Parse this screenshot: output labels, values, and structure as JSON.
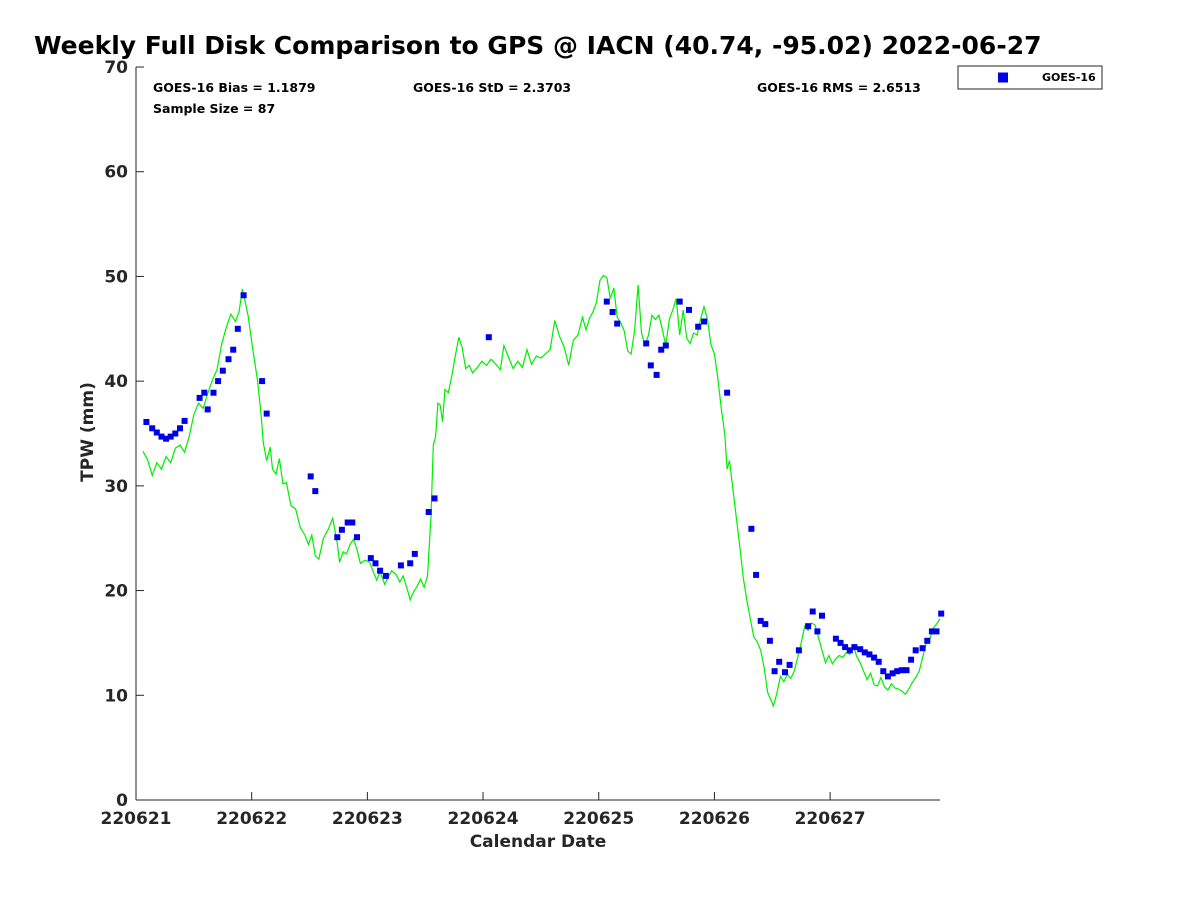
{
  "chart_data": {
    "type": "scatter",
    "title": "Weekly Full Disk Comparison to GPS @ IACN (40.74, -95.02) 2022-06-27",
    "xlabel": "Calendar Date",
    "ylabel": "TPW (mm)",
    "xlim": [
      0,
      6.95
    ],
    "ylim": [
      0,
      70
    ],
    "x_ticks": [
      0,
      1,
      2,
      3,
      4,
      5,
      6
    ],
    "x_tick_labels": [
      "220621",
      "220622",
      "220623",
      "220624",
      "220625",
      "220626",
      "220627"
    ],
    "y_ticks": [
      0,
      10,
      20,
      30,
      40,
      50,
      60,
      70
    ],
    "y_tick_labels": [
      "0",
      "10",
      "20",
      "30",
      "40",
      "50",
      "60",
      "70"
    ],
    "stats": {
      "bias": "GOES-16 Bias = 1.1879",
      "std": "GOES-16 StD = 2.3703",
      "rms": "GOES-16 RMS = 2.6513",
      "sample_size": "Sample Size = 87"
    },
    "legend": {
      "position": "top-right, outside plot",
      "label": "GOES-16",
      "marker_color": "#0000e6"
    },
    "series": [
      {
        "name": "GOES-16",
        "kind": "scatter",
        "color": "#0000e6",
        "points": [
          [
            0.09,
            36.1
          ],
          [
            0.14,
            35.5
          ],
          [
            0.18,
            35.1
          ],
          [
            0.22,
            34.7
          ],
          [
            0.26,
            34.5
          ],
          [
            0.3,
            34.7
          ],
          [
            0.34,
            35.0
          ],
          [
            0.38,
            35.5
          ],
          [
            0.42,
            36.2
          ],
          [
            0.55,
            38.4
          ],
          [
            0.59,
            38.9
          ],
          [
            0.62,
            37.3
          ],
          [
            0.67,
            38.9
          ],
          [
            0.71,
            40.0
          ],
          [
            0.75,
            41.0
          ],
          [
            0.8,
            42.1
          ],
          [
            0.84,
            43.0
          ],
          [
            0.88,
            45.0
          ],
          [
            0.93,
            48.2
          ],
          [
            1.09,
            40.0
          ],
          [
            1.13,
            36.9
          ],
          [
            1.51,
            30.9
          ],
          [
            1.55,
            29.5
          ],
          [
            1.74,
            25.1
          ],
          [
            1.78,
            25.8
          ],
          [
            1.83,
            26.5
          ],
          [
            1.87,
            26.5
          ],
          [
            1.91,
            25.1
          ],
          [
            2.03,
            23.1
          ],
          [
            2.07,
            22.6
          ],
          [
            2.11,
            21.9
          ],
          [
            2.16,
            21.4
          ],
          [
            2.29,
            22.4
          ],
          [
            2.37,
            22.6
          ],
          [
            2.41,
            23.5
          ],
          [
            2.53,
            27.5
          ],
          [
            2.58,
            28.8
          ],
          [
            3.05,
            44.2
          ],
          [
            4.07,
            47.6
          ],
          [
            4.12,
            46.6
          ],
          [
            4.16,
            45.5
          ],
          [
            4.41,
            43.6
          ],
          [
            4.45,
            41.5
          ],
          [
            4.5,
            40.6
          ],
          [
            4.54,
            43.0
          ],
          [
            4.58,
            43.4
          ],
          [
            4.7,
            47.6
          ],
          [
            4.78,
            46.8
          ],
          [
            4.86,
            45.2
          ],
          [
            4.91,
            45.7
          ],
          [
            5.11,
            38.9
          ],
          [
            5.32,
            25.9
          ],
          [
            5.36,
            21.5
          ],
          [
            5.4,
            17.1
          ],
          [
            5.44,
            16.8
          ],
          [
            5.48,
            15.2
          ],
          [
            5.52,
            12.3
          ],
          [
            5.56,
            13.2
          ],
          [
            5.61,
            12.2
          ],
          [
            5.65,
            12.9
          ],
          [
            5.73,
            14.3
          ],
          [
            5.81,
            16.6
          ],
          [
            5.85,
            18.0
          ],
          [
            5.89,
            16.1
          ],
          [
            5.93,
            17.6
          ],
          [
            6.05,
            15.4
          ],
          [
            6.09,
            15.0
          ],
          [
            6.13,
            14.6
          ],
          [
            6.17,
            14.3
          ],
          [
            6.21,
            14.6
          ],
          [
            6.26,
            14.4
          ],
          [
            6.3,
            14.1
          ],
          [
            6.34,
            13.9
          ],
          [
            6.38,
            13.6
          ],
          [
            6.42,
            13.2
          ],
          [
            6.46,
            12.3
          ],
          [
            6.5,
            11.8
          ],
          [
            6.54,
            12.1
          ],
          [
            6.58,
            12.3
          ],
          [
            6.62,
            12.4
          ],
          [
            6.66,
            12.4
          ],
          [
            6.7,
            13.4
          ],
          [
            6.74,
            14.3
          ],
          [
            6.8,
            14.5
          ],
          [
            6.84,
            15.2
          ],
          [
            6.88,
            16.1
          ],
          [
            6.92,
            16.1
          ],
          [
            6.96,
            17.8
          ]
        ]
      },
      {
        "name": "GPS",
        "kind": "line",
        "color": "#00ee00",
        "points": [
          [
            0.06,
            33.3
          ],
          [
            0.1,
            32.5
          ],
          [
            0.14,
            31.0
          ],
          [
            0.18,
            32.2
          ],
          [
            0.22,
            31.6
          ],
          [
            0.26,
            32.8
          ],
          [
            0.3,
            32.2
          ],
          [
            0.34,
            33.6
          ],
          [
            0.38,
            33.9
          ],
          [
            0.42,
            33.2
          ],
          [
            0.46,
            34.7
          ],
          [
            0.5,
            36.8
          ],
          [
            0.54,
            37.9
          ],
          [
            0.58,
            37.4
          ],
          [
            0.62,
            38.8
          ],
          [
            0.66,
            40.1
          ],
          [
            0.7,
            41.1
          ],
          [
            0.74,
            43.5
          ],
          [
            0.78,
            45.1
          ],
          [
            0.82,
            46.4
          ],
          [
            0.86,
            45.7
          ],
          [
            0.89,
            46.6
          ],
          [
            0.92,
            48.8
          ],
          [
            0.94,
            47.8
          ],
          [
            0.97,
            46.2
          ],
          [
            1.01,
            43.0
          ],
          [
            1.05,
            40.1
          ],
          [
            1.08,
            37.0
          ],
          [
            1.1,
            34.1
          ],
          [
            1.13,
            32.4
          ],
          [
            1.16,
            33.7
          ],
          [
            1.18,
            31.6
          ],
          [
            1.21,
            31.1
          ],
          [
            1.24,
            32.6
          ],
          [
            1.27,
            30.2
          ],
          [
            1.3,
            30.3
          ],
          [
            1.34,
            28.1
          ],
          [
            1.38,
            27.8
          ],
          [
            1.42,
            26.0
          ],
          [
            1.46,
            25.3
          ],
          [
            1.49,
            24.4
          ],
          [
            1.52,
            25.3
          ],
          [
            1.55,
            23.3
          ],
          [
            1.58,
            23.0
          ],
          [
            1.62,
            25.0
          ],
          [
            1.66,
            25.8
          ],
          [
            1.7,
            26.9
          ],
          [
            1.74,
            24.5
          ],
          [
            1.76,
            22.7
          ],
          [
            1.79,
            23.7
          ],
          [
            1.82,
            23.5
          ],
          [
            1.85,
            24.4
          ],
          [
            1.88,
            24.9
          ],
          [
            1.91,
            23.9
          ],
          [
            1.94,
            22.6
          ],
          [
            1.98,
            22.9
          ],
          [
            2.02,
            22.7
          ],
          [
            2.05,
            21.8
          ],
          [
            2.08,
            21.0
          ],
          [
            2.11,
            21.8
          ],
          [
            2.15,
            20.6
          ],
          [
            2.18,
            21.3
          ],
          [
            2.21,
            21.9
          ],
          [
            2.25,
            21.5
          ],
          [
            2.28,
            20.8
          ],
          [
            2.31,
            21.4
          ],
          [
            2.34,
            20.3
          ],
          [
            2.37,
            19.1
          ],
          [
            2.4,
            19.9
          ],
          [
            2.43,
            20.4
          ],
          [
            2.46,
            21.1
          ],
          [
            2.49,
            20.3
          ],
          [
            2.52,
            21.4
          ],
          [
            2.55,
            27.1
          ],
          [
            2.57,
            33.9
          ],
          [
            2.59,
            34.7
          ],
          [
            2.61,
            37.9
          ],
          [
            2.63,
            37.7
          ],
          [
            2.65,
            36.1
          ],
          [
            2.67,
            39.2
          ],
          [
            2.7,
            38.9
          ],
          [
            2.73,
            40.5
          ],
          [
            2.76,
            42.4
          ],
          [
            2.79,
            44.2
          ],
          [
            2.82,
            43.2
          ],
          [
            2.85,
            41.2
          ],
          [
            2.88,
            41.5
          ],
          [
            2.91,
            40.8
          ],
          [
            2.95,
            41.3
          ],
          [
            2.99,
            41.9
          ],
          [
            3.03,
            41.5
          ],
          [
            3.07,
            42.1
          ],
          [
            3.11,
            41.6
          ],
          [
            3.15,
            41.1
          ],
          [
            3.18,
            43.4
          ],
          [
            3.22,
            42.3
          ],
          [
            3.26,
            41.2
          ],
          [
            3.3,
            41.9
          ],
          [
            3.34,
            41.3
          ],
          [
            3.38,
            43.0
          ],
          [
            3.42,
            41.6
          ],
          [
            3.46,
            42.4
          ],
          [
            3.5,
            42.2
          ],
          [
            3.54,
            42.6
          ],
          [
            3.58,
            43.0
          ],
          [
            3.62,
            45.8
          ],
          [
            3.66,
            44.3
          ],
          [
            3.7,
            43.3
          ],
          [
            3.74,
            41.5
          ],
          [
            3.78,
            43.9
          ],
          [
            3.82,
            44.4
          ],
          [
            3.86,
            46.1
          ],
          [
            3.89,
            44.9
          ],
          [
            3.92,
            46.0
          ],
          [
            3.95,
            46.6
          ],
          [
            3.98,
            47.5
          ],
          [
            4.01,
            49.6
          ],
          [
            4.04,
            50.1
          ],
          [
            4.07,
            49.9
          ],
          [
            4.1,
            47.9
          ],
          [
            4.13,
            48.9
          ],
          [
            4.16,
            46.1
          ],
          [
            4.19,
            45.6
          ],
          [
            4.22,
            44.8
          ],
          [
            4.25,
            42.9
          ],
          [
            4.28,
            42.6
          ],
          [
            4.31,
            44.8
          ],
          [
            4.34,
            49.2
          ],
          [
            4.37,
            44.6
          ],
          [
            4.4,
            43.4
          ],
          [
            4.43,
            44.4
          ],
          [
            4.46,
            46.3
          ],
          [
            4.49,
            45.9
          ],
          [
            4.52,
            46.3
          ],
          [
            4.55,
            44.9
          ],
          [
            4.58,
            43.4
          ],
          [
            4.61,
            45.9
          ],
          [
            4.64,
            46.8
          ],
          [
            4.67,
            47.9
          ],
          [
            4.7,
            44.4
          ],
          [
            4.73,
            46.8
          ],
          [
            4.76,
            44.1
          ],
          [
            4.79,
            43.6
          ],
          [
            4.82,
            44.6
          ],
          [
            4.85,
            44.4
          ],
          [
            4.88,
            45.9
          ],
          [
            4.91,
            47.1
          ],
          [
            4.94,
            45.9
          ],
          [
            4.97,
            43.5
          ],
          [
            5.0,
            42.6
          ],
          [
            5.03,
            40.2
          ],
          [
            5.06,
            37.3
          ],
          [
            5.09,
            34.9
          ],
          [
            5.11,
            31.6
          ],
          [
            5.13,
            32.4
          ],
          [
            5.16,
            29.7
          ],
          [
            5.19,
            26.9
          ],
          [
            5.22,
            24.1
          ],
          [
            5.25,
            21.2
          ],
          [
            5.28,
            19.1
          ],
          [
            5.31,
            17.3
          ],
          [
            5.34,
            15.6
          ],
          [
            5.37,
            15.1
          ],
          [
            5.4,
            14.3
          ],
          [
            5.43,
            12.6
          ],
          [
            5.46,
            10.3
          ],
          [
            5.49,
            9.5
          ],
          [
            5.51,
            9.0
          ],
          [
            5.54,
            10.2
          ],
          [
            5.57,
            11.8
          ],
          [
            5.6,
            11.3
          ],
          [
            5.63,
            12.0
          ],
          [
            5.66,
            11.6
          ],
          [
            5.69,
            12.3
          ],
          [
            5.72,
            13.6
          ],
          [
            5.75,
            15.0
          ],
          [
            5.78,
            16.6
          ],
          [
            5.81,
            16.2
          ],
          [
            5.84,
            16.9
          ],
          [
            5.87,
            16.7
          ],
          [
            5.9,
            15.5
          ],
          [
            5.93,
            14.3
          ],
          [
            5.96,
            13.1
          ],
          [
            5.99,
            13.8
          ],
          [
            6.02,
            13.0
          ],
          [
            6.05,
            13.5
          ],
          [
            6.08,
            13.8
          ],
          [
            6.11,
            13.6
          ],
          [
            6.14,
            14.1
          ],
          [
            6.17,
            13.9
          ],
          [
            6.2,
            14.8
          ],
          [
            6.23,
            13.7
          ],
          [
            6.26,
            13.1
          ],
          [
            6.29,
            12.3
          ],
          [
            6.32,
            11.5
          ],
          [
            6.35,
            12.1
          ],
          [
            6.38,
            11.0
          ],
          [
            6.41,
            10.9
          ],
          [
            6.44,
            11.7
          ],
          [
            6.47,
            10.8
          ],
          [
            6.5,
            10.5
          ],
          [
            6.53,
            11.1
          ],
          [
            6.56,
            10.7
          ],
          [
            6.59,
            10.6
          ],
          [
            6.62,
            10.4
          ],
          [
            6.65,
            10.1
          ],
          [
            6.68,
            10.6
          ],
          [
            6.71,
            11.2
          ],
          [
            6.74,
            11.7
          ],
          [
            6.77,
            12.3
          ],
          [
            6.8,
            13.6
          ],
          [
            6.83,
            14.9
          ],
          [
            6.86,
            15.3
          ],
          [
            6.89,
            16.4
          ],
          [
            6.92,
            16.8
          ],
          [
            6.95,
            17.3
          ]
        ]
      }
    ]
  }
}
